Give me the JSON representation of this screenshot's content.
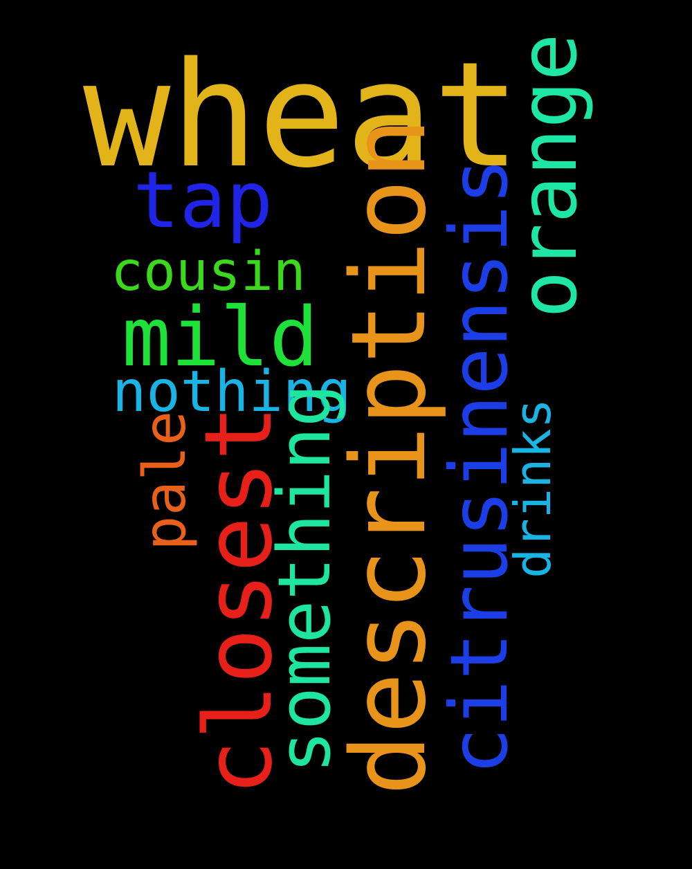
{
  "wordcloud": {
    "background": "#000000",
    "words": {
      "wheat": {
        "text": "wheat",
        "color": "#e2b41a"
      },
      "tap": {
        "text": "tap",
        "color": "#1f24e6"
      },
      "cousin": {
        "text": "cousin",
        "color": "#3ad91c"
      },
      "mild": {
        "text": "mild",
        "color": "#1ee23a"
      },
      "nothing": {
        "text": "nothing",
        "color": "#1ab4e4"
      },
      "description": {
        "text": "description",
        "color": "#e8941a"
      },
      "citrusinensis": {
        "text": "citrusinensis",
        "color": "#1b3ee6"
      },
      "orange": {
        "text": "orange",
        "color": "#1ee6a4"
      },
      "closest": {
        "text": "closest",
        "color": "#e8201a"
      },
      "something": {
        "text": "something",
        "color": "#1ee6a0"
      },
      "pale": {
        "text": "pale",
        "color": "#e8601a"
      },
      "drinks": {
        "text": "drinks",
        "color": "#1ab4e4"
      }
    }
  }
}
